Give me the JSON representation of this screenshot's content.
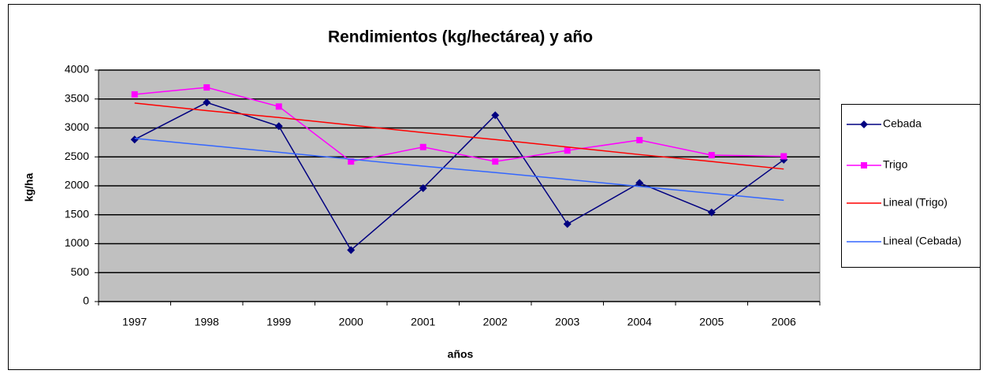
{
  "chart_data": {
    "type": "line",
    "title": "Rendimientos (kg/hectárea) y año",
    "x_label": "años",
    "y_label": "kg/ha",
    "categories": [
      "1997",
      "1998",
      "1999",
      "2000",
      "2001",
      "2002",
      "2003",
      "2004",
      "2005",
      "2006"
    ],
    "series": [
      {
        "name": "Cebada",
        "color": "#000080",
        "marker": "diamond",
        "values": [
          2800,
          3440,
          3030,
          890,
          1960,
          3220,
          1340,
          2050,
          1540,
          2450
        ]
      },
      {
        "name": "Trigo",
        "color": "#ff00ff",
        "marker": "square",
        "values": [
          3580,
          3700,
          3370,
          2420,
          2670,
          2420,
          2610,
          2790,
          2530,
          2510
        ]
      },
      {
        "name": "Lineal (Trigo)",
        "color": "#ff0000",
        "marker": "none",
        "values": [
          3430,
          3300,
          3180,
          3050,
          2920,
          2800,
          2670,
          2540,
          2420,
          2290
        ]
      },
      {
        "name": "Lineal (Cebada)",
        "color": "#3366ff",
        "marker": "none",
        "values": [
          2820,
          2700,
          2580,
          2460,
          2340,
          2230,
          2110,
          1990,
          1870,
          1750
        ]
      }
    ],
    "ylim": [
      0,
      4000
    ],
    "yticks": [
      0,
      500,
      1000,
      1500,
      2000,
      2500,
      3000,
      3500,
      4000
    ],
    "grid": true,
    "legend": "right"
  }
}
